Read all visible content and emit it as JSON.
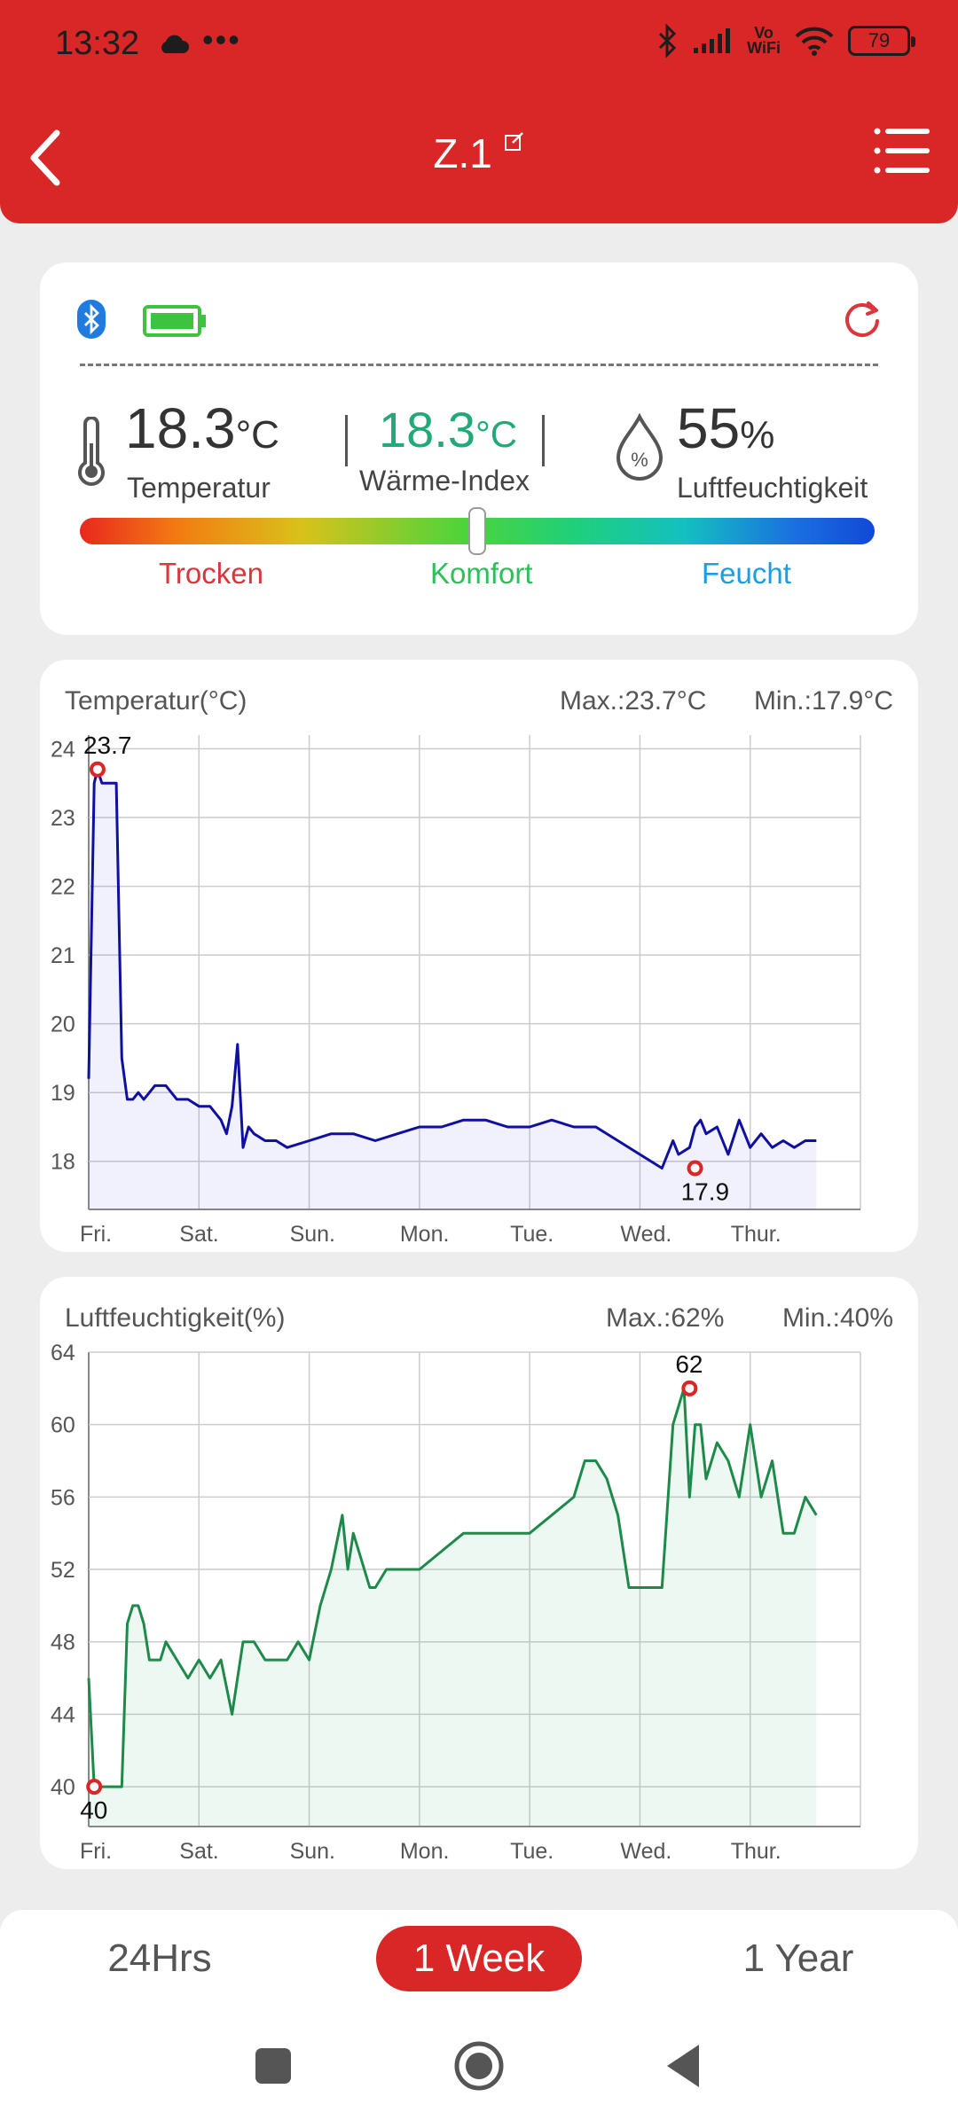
{
  "status_bar": {
    "time": "13:32",
    "vowifi_top": "Vo",
    "vowifi_bottom": "WiFi",
    "battery": "79"
  },
  "header": {
    "title": "Z.1"
  },
  "device": {
    "temperature": {
      "value": "18.3",
      "unit": "°C",
      "label": "Temperatur"
    },
    "heat_index": {
      "value": "18.3",
      "unit": "°C",
      "label": "Wärme-Index"
    },
    "humidity": {
      "value": "55",
      "unit": "%",
      "label": "Luftfeuchtigkeit"
    },
    "comfort_level": 0.5,
    "scale": {
      "dry": "Trocken",
      "comfort": "Komfort",
      "humid": "Feucht"
    },
    "colors": {
      "dry": "#d9363e",
      "comfort": "#2fbf5a",
      "humid": "#1a9ee0",
      "accent": "#d92626"
    }
  },
  "temp_card": {
    "title": "Temperatur(°C)",
    "max": "Max.:23.7°C",
    "min": "Min.:17.9°C"
  },
  "hum_card": {
    "title": "Luftfeuchtigkeit(%)",
    "max": "Max.:62%",
    "min": "Min.:40%"
  },
  "chart_data": [
    {
      "type": "area",
      "title": "Temperatur(°C)",
      "x_ticks": [
        "Fri.",
        "Sat.",
        "Sun.",
        "Mon.",
        "Tue.",
        "Wed.",
        "Thur."
      ],
      "y_ticks": [
        18,
        19,
        20,
        21,
        22,
        23,
        24
      ],
      "ylim": [
        17.3,
        24.2
      ],
      "x": [
        0,
        0.05,
        0.08,
        0.12,
        0.15,
        0.2,
        0.25,
        0.3,
        0.35,
        0.4,
        0.45,
        0.5,
        0.55,
        0.6,
        0.7,
        0.8,
        0.9,
        1.0,
        1.1,
        1.2,
        1.25,
        1.3,
        1.35,
        1.4,
        1.45,
        1.5,
        1.6,
        1.7,
        1.8,
        2.0,
        2.2,
        2.4,
        2.6,
        2.8,
        3.0,
        3.2,
        3.4,
        3.6,
        3.8,
        4.0,
        4.2,
        4.4,
        4.6,
        4.8,
        5.0,
        5.2,
        5.3,
        5.35,
        5.45,
        5.5,
        5.55,
        5.6,
        5.7,
        5.8,
        5.9,
        6.0,
        6.1,
        6.2,
        6.3,
        6.4,
        6.5,
        6.6
      ],
      "series": [
        {
          "color": "#0f0fa0",
          "values": [
            19.2,
            23.5,
            23.7,
            23.5,
            23.5,
            23.5,
            23.5,
            19.5,
            18.9,
            18.9,
            19.0,
            18.9,
            19.0,
            19.1,
            19.1,
            18.9,
            18.9,
            18.8,
            18.8,
            18.6,
            18.4,
            18.8,
            19.7,
            18.2,
            18.5,
            18.4,
            18.3,
            18.3,
            18.2,
            18.3,
            18.4,
            18.4,
            18.3,
            18.4,
            18.5,
            18.5,
            18.6,
            18.6,
            18.5,
            18.5,
            18.6,
            18.5,
            18.5,
            18.3,
            18.1,
            17.9,
            18.3,
            18.1,
            18.2,
            18.5,
            18.6,
            18.4,
            18.5,
            18.1,
            18.6,
            18.2,
            18.4,
            18.2,
            18.3,
            18.2,
            18.3,
            18.3
          ]
        }
      ],
      "annotations": [
        {
          "label": "23.7",
          "x": 0.08,
          "y": 23.7
        },
        {
          "label": "17.9",
          "x": 5.5,
          "y": 17.9
        }
      ]
    },
    {
      "type": "area",
      "title": "Luftfeuchtigkeit(%)",
      "x_ticks": [
        "Fri.",
        "Sat.",
        "Sun.",
        "Mon.",
        "Tue.",
        "Wed.",
        "Thur."
      ],
      "y_ticks": [
        40,
        44,
        48,
        52,
        56,
        60,
        64
      ],
      "ylim": [
        37.8,
        64
      ],
      "x": [
        0,
        0.05,
        0.1,
        0.2,
        0.3,
        0.35,
        0.4,
        0.45,
        0.5,
        0.55,
        0.6,
        0.65,
        0.7,
        0.8,
        0.9,
        1.0,
        1.1,
        1.2,
        1.3,
        1.4,
        1.5,
        1.6,
        1.7,
        1.8,
        1.9,
        2.0,
        2.1,
        2.2,
        2.3,
        2.35,
        2.4,
        2.5,
        2.55,
        2.6,
        2.7,
        2.8,
        3.0,
        3.2,
        3.4,
        3.6,
        3.8,
        4.0,
        4.2,
        4.4,
        4.5,
        4.6,
        4.7,
        4.8,
        4.9,
        5.0,
        5.1,
        5.2,
        5.3,
        5.4,
        5.45,
        5.5,
        5.55,
        5.6,
        5.7,
        5.8,
        5.9,
        6.0,
        6.1,
        6.2,
        6.3,
        6.4,
        6.5,
        6.6
      ],
      "series": [
        {
          "color": "#1e8a4a",
          "values": [
            46,
            40,
            40,
            40,
            40,
            49,
            50,
            50,
            49,
            47,
            47,
            47,
            48,
            47,
            46,
            47,
            46,
            47,
            44,
            48,
            48,
            47,
            47,
            47,
            48,
            47,
            50,
            52,
            55,
            52,
            54,
            52,
            51,
            51,
            52,
            52,
            52,
            53,
            54,
            54,
            54,
            54,
            55,
            56,
            58,
            58,
            57,
            55,
            51,
            51,
            51,
            51,
            60,
            62,
            56,
            60,
            60,
            57,
            59,
            58,
            56,
            60,
            56,
            58,
            54,
            54,
            56,
            55
          ]
        }
      ],
      "annotations": [
        {
          "label": "40",
          "x": 0.05,
          "y": 40
        },
        {
          "label": "62",
          "x": 5.45,
          "y": 62
        }
      ]
    }
  ],
  "range_tabs": [
    "24Hrs",
    "1 Week",
    "1 Year"
  ]
}
